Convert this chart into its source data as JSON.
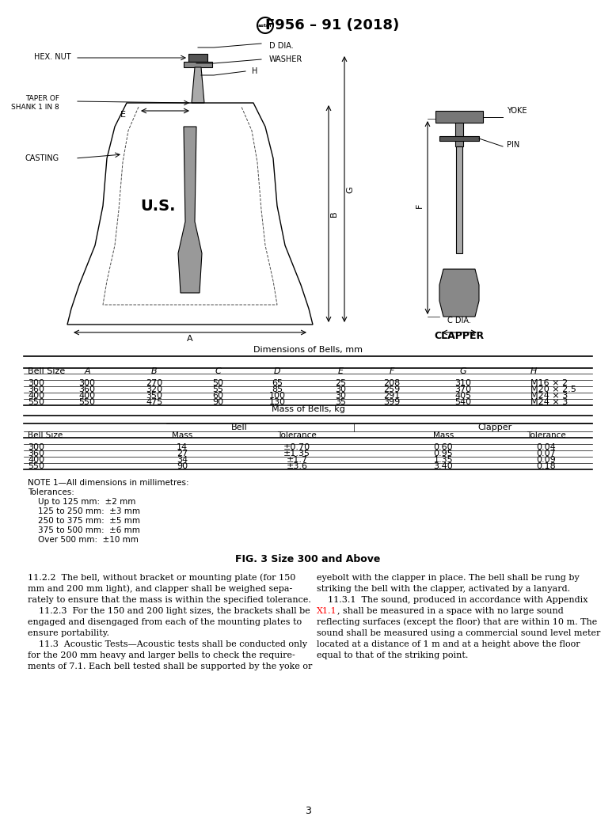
{
  "title": "F956 – 91 (2018)",
  "astm_logo": true,
  "bg_color": "#ffffff",
  "text_color": "#000000",
  "dim_table": {
    "caption": "Dimensions of Bells, mm",
    "headers": [
      "Bell Size",
      "A",
      "B",
      "C",
      "D",
      "E",
      "F",
      "G",
      "H"
    ],
    "rows": [
      [
        "300",
        "300",
        "270",
        "50",
        "65",
        "25",
        "208",
        "310",
        "M16 × 2"
      ],
      [
        "360",
        "360",
        "320",
        "55",
        "85",
        "30",
        "259",
        "370",
        "M20 × 2.5"
      ],
      [
        "400",
        "400",
        "350",
        "60",
        "100",
        "30",
        "291",
        "405",
        "M24 × 3"
      ],
      [
        "550",
        "550",
        "475",
        "90",
        "130",
        "35",
        "399",
        "540",
        "M24 × 3"
      ]
    ]
  },
  "mass_table": {
    "caption": "Mass of Bells, kg",
    "col_groups": [
      "Bell",
      "Clapper"
    ],
    "headers": [
      "Bell Size",
      "Mass",
      "Tolerance",
      "Mass",
      "Tolerance"
    ],
    "rows": [
      [
        "300",
        "14",
        "±0.70",
        "0.60",
        "0.04"
      ],
      [
        "360",
        "27",
        "±1.35",
        "0.95",
        "0.07"
      ],
      [
        "400",
        "34",
        "±1.7",
        "1.35",
        "0.09"
      ],
      [
        "550",
        "90",
        "±3.6",
        "3.40",
        "0.18"
      ]
    ]
  },
  "notes": [
    "NOTE 1—All dimensions in millimetres:",
    "Tolerances:",
    "    Up to 125 mm:  ±2 mm",
    "    125 to 250 mm:  ±3 mm",
    "    250 to 375 mm:  ±5 mm",
    "    375 to 500 mm:  ±6 mm",
    "    Over 500 mm:  ±10 mm"
  ],
  "fig_caption": "FIG. 3 Size 300 and Above",
  "body_col1": [
    "11.2.2  The bell, without bracket or mounting plate (for 150",
    "mm and 200 mm light), and clapper shall be weighed sepa-",
    "rately to ensure that the mass is within the specified tolerance.",
    "    11.2.3  For the 150 and 200 light sizes, the brackets shall be",
    "engaged and disengaged from each of the mounting plates to",
    "ensure portability.",
    "    11.3  Acoustic Tests—Acoustic tests shall be conducted only",
    "for the 200 mm heavy and larger bells to check the require-",
    "ments of 7.1. Each bell tested shall be supported by the yoke or"
  ],
  "body_col2_line0": "eyebolt with the clapper in place. The bell shall be rung by",
  "body_col2_line1": "striking the bell with the clapper, activated by a lanyard.",
  "body_col2_line2": "    11.3.1  The sound, produced in accordance with Appendix",
  "body_col2_line3_red": "X1.1",
  "body_col2_line3_rest": ", shall be measured in a space with no large sound",
  "body_col2_line4": "reflecting surfaces (except the floor) that are within 10 m. The",
  "body_col2_line5": "sound shall be measured using a commercial sound level meter",
  "body_col2_line6": "located at a distance of 1 m and at a height above the floor",
  "body_col2_line7": "equal to that of the striking point.",
  "page_number": "3"
}
